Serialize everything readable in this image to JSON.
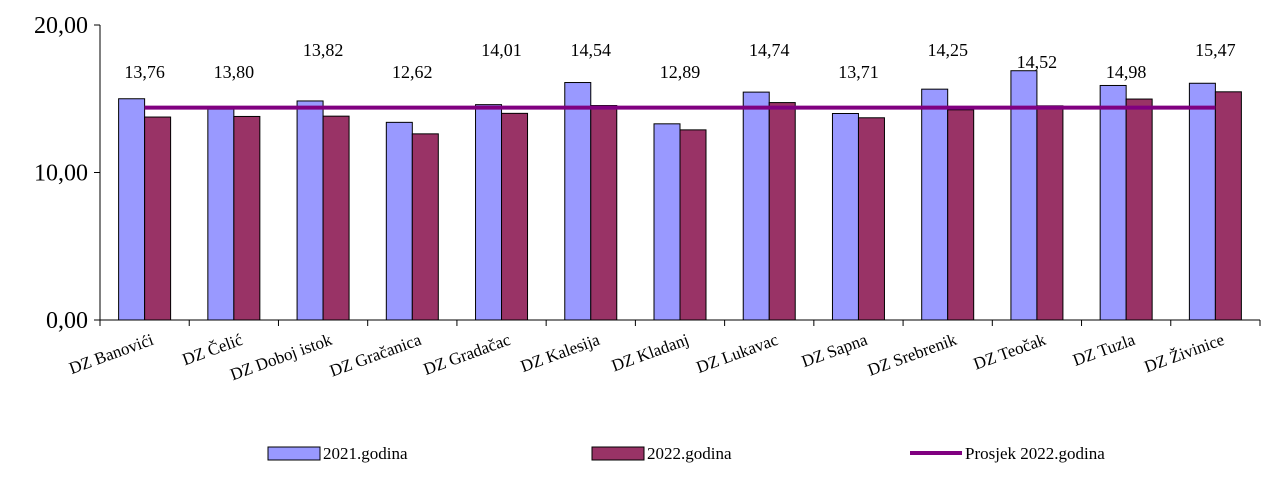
{
  "chart_data": {
    "type": "bar",
    "title": "",
    "xlabel": "",
    "ylabel": "",
    "ylim": [
      0,
      20
    ],
    "y_ticks": [
      "0,00",
      "10,00",
      "20,00"
    ],
    "categories": [
      "DZ Banovići",
      "DZ Čelić",
      "DZ Doboj istok",
      "DZ Gračanica",
      "DZ Gradačac",
      "DZ Kalesija",
      "DZ Kladanj",
      "DZ Lukavac",
      "DZ Sapna",
      "DZ Srebrenik",
      "DZ Teočak",
      "DZ Tuzla",
      "DZ Živinice"
    ],
    "series": [
      {
        "name": "2021.godina",
        "color": "#9999ff",
        "values": [
          15.0,
          14.3,
          14.85,
          13.4,
          14.6,
          16.1,
          13.3,
          15.45,
          14.0,
          15.65,
          16.9,
          15.9,
          16.05
        ]
      },
      {
        "name": "2022.godina",
        "color": "#993366",
        "values": [
          13.76,
          13.8,
          13.82,
          12.62,
          14.01,
          14.54,
          12.89,
          14.74,
          13.71,
          14.25,
          14.52,
          14.98,
          15.47
        ],
        "labels": [
          "13,76",
          "13,80",
          "13,82",
          "12,62",
          "14,01",
          "14,54",
          "12,89",
          "14,74",
          "13,71",
          "14,25",
          "14,52",
          "14,98",
          "15,47"
        ]
      }
    ],
    "average_line": {
      "name": "Prosjek 2022.godina",
      "color": "#800080",
      "value": 14.4
    },
    "legend_position": "bottom",
    "grid": false
  }
}
